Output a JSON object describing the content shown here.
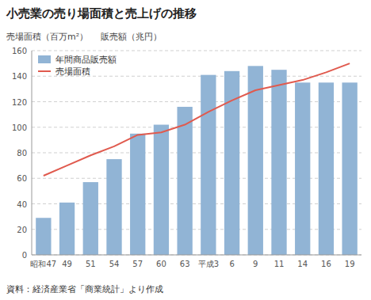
{
  "chart_data": {
    "type": "bar",
    "title": "小売業の売り場面積と売上げの推移",
    "categories": [
      "昭和47",
      "49",
      "51",
      "54",
      "57",
      "60",
      "63",
      "平成3",
      "6",
      "9",
      "11",
      "14",
      "16",
      "19"
    ],
    "series": [
      {
        "name": "年間商品販売額",
        "type": "bar",
        "color": "#91b4d5",
        "values": [
          29,
          41,
          57,
          75,
          95,
          102,
          116,
          141,
          144,
          148,
          145,
          135,
          135,
          135
        ]
      },
      {
        "name": "売場面積",
        "type": "line",
        "color": "#e05a4e",
        "values": [
          62,
          70,
          78,
          85,
          94,
          96,
          102,
          112,
          121,
          129,
          133,
          137,
          143,
          150
        ]
      }
    ],
    "ylim": [
      0,
      160
    ],
    "yticks": [
      0,
      20,
      40,
      60,
      80,
      100,
      120,
      140,
      160
    ],
    "grid": true,
    "legend": "upper left",
    "annotations": [
      "売場面積（百万m²）",
      "販売額（兆円）",
      "資料：経済産業省「商業統計」より作成"
    ]
  }
}
